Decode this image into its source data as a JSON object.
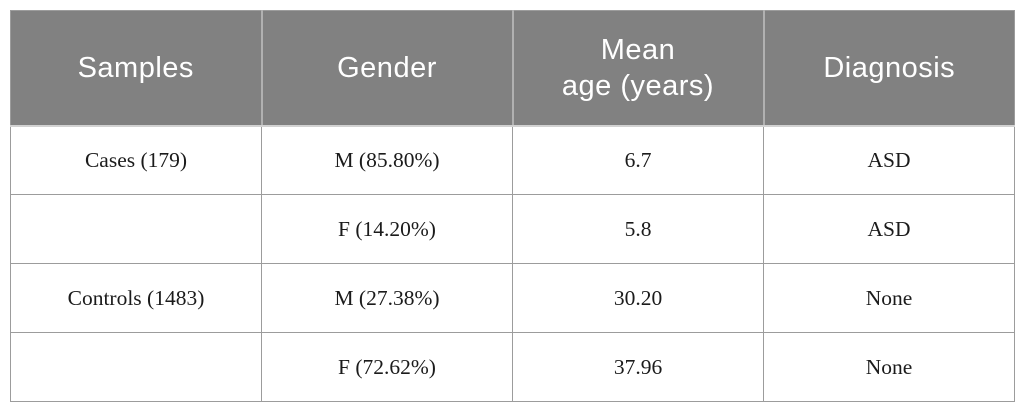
{
  "table": {
    "columns": [
      "Samples",
      "Gender",
      "Mean\nage (years)",
      "Diagnosis"
    ],
    "rows": [
      [
        "Cases (179)",
        "M (85.80%)",
        "6.7",
        "ASD"
      ],
      [
        "",
        "F (14.20%)",
        "5.8",
        "ASD"
      ],
      [
        "Controls (1483)",
        "M (27.38%)",
        "30.20",
        "None"
      ],
      [
        "",
        "F (72.62%)",
        "37.96",
        "None"
      ]
    ],
    "colors": {
      "page_bg": "#ffffff",
      "header_bg": "#818181",
      "header_text": "#ffffff",
      "header_divider": "#b1b1b1",
      "header_bottom": "#d2d2d2",
      "grid_border": "#9c9c9c",
      "body_text": "#1b1b1b"
    }
  },
  "chart_data": {
    "type": "table",
    "title": "",
    "columns": [
      "Samples",
      "Gender",
      "Mean age (years)",
      "Diagnosis"
    ],
    "rows": [
      [
        "Cases (179)",
        "M (85.80%)",
        "6.7",
        "ASD"
      ],
      [
        "",
        "F (14.20%)",
        "5.8",
        "ASD"
      ],
      [
        "Controls (1483)",
        "M (27.38%)",
        "30.20",
        "None"
      ],
      [
        "",
        "F (72.62%)",
        "37.96",
        "None"
      ]
    ]
  }
}
